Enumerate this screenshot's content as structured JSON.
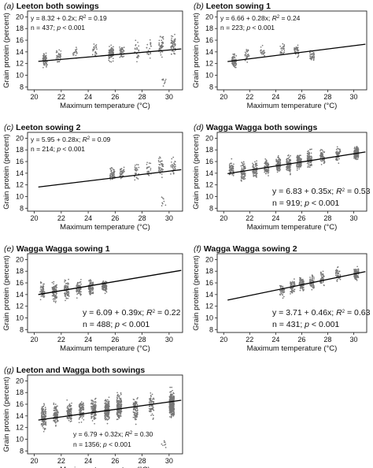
{
  "chart_data": [
    {
      "type": "scatter",
      "panel": "(a)",
      "title": "Leeton both sowings",
      "xlabel": "Maximum temperature (°C)",
      "ylabel": "Grain protein (percent)",
      "xlim": [
        19.5,
        31
      ],
      "ylim": [
        7.5,
        21
      ],
      "xticks": [
        20,
        22,
        24,
        26,
        28,
        30
      ],
      "yticks": [
        8,
        10,
        12,
        14,
        16,
        18,
        20
      ],
      "eq_line": [
        "y = 8.32 + 0.2x; ",
        "R",
        "2",
        " = 0.19"
      ],
      "n_line": [
        "n = 437; ",
        "p",
        " < 0.001"
      ],
      "annotation_position": "top-left",
      "regression": {
        "intercept": 8.32,
        "slope": 0.2,
        "x_range": [
          20.3,
          30.9
        ]
      },
      "points_summary": [
        {
          "x": 20.8,
          "y_min": 10.9,
          "y_max": 14.2,
          "n": 70
        },
        {
          "x": 21.8,
          "y_min": 11.8,
          "y_max": 14.8,
          "n": 30
        },
        {
          "x": 23.0,
          "y_min": 12.5,
          "y_max": 15.3,
          "n": 20
        },
        {
          "x": 24.5,
          "y_min": 12.5,
          "y_max": 16.0,
          "n": 25
        },
        {
          "x": 25.7,
          "y_min": 12.0,
          "y_max": 15.5,
          "n": 95
        },
        {
          "x": 26.5,
          "y_min": 12.5,
          "y_max": 15.5,
          "n": 40
        },
        {
          "x": 27.6,
          "y_min": 12.0,
          "y_max": 16.5,
          "n": 25
        },
        {
          "x": 28.5,
          "y_min": 12.5,
          "y_max": 17.0,
          "n": 22
        },
        {
          "x": 29.4,
          "y_min": 12.5,
          "y_max": 17.5,
          "n": 45
        },
        {
          "x": 29.6,
          "y_min": 7.8,
          "y_max": 10.5,
          "n": 8
        },
        {
          "x": 30.3,
          "y_min": 13.0,
          "y_max": 17.5,
          "n": 57
        }
      ]
    },
    {
      "type": "scatter",
      "panel": "(b)",
      "title": "Leeton sowing 1",
      "xlabel": "Maximum temperature (°C)",
      "ylabel": "Grain protein (percent)",
      "xlim": [
        19.5,
        31
      ],
      "ylim": [
        7.5,
        21
      ],
      "xticks": [
        20,
        22,
        24,
        26,
        28,
        30
      ],
      "yticks": [
        8,
        10,
        12,
        14,
        16,
        18,
        20
      ],
      "eq_line": [
        "y = 6.66 + 0.28x; ",
        "R",
        "2",
        " = 0.24"
      ],
      "n_line": [
        "n = 223; ",
        "p",
        " < 0.001"
      ],
      "annotation_position": "top-left",
      "regression": {
        "intercept": 6.66,
        "slope": 0.28,
        "x_range": [
          20.3,
          30.9
        ]
      },
      "points_summary": [
        {
          "x": 20.8,
          "y_min": 10.9,
          "y_max": 14.0,
          "n": 70
        },
        {
          "x": 21.8,
          "y_min": 11.8,
          "y_max": 14.8,
          "n": 30
        },
        {
          "x": 23.0,
          "y_min": 12.5,
          "y_max": 15.3,
          "n": 20
        },
        {
          "x": 24.5,
          "y_min": 12.8,
          "y_max": 16.0,
          "n": 25
        },
        {
          "x": 25.6,
          "y_min": 12.5,
          "y_max": 15.5,
          "n": 40
        },
        {
          "x": 26.8,
          "y_min": 12.0,
          "y_max": 14.5,
          "n": 38
        }
      ]
    },
    {
      "type": "scatter",
      "panel": "(c)",
      "title": "Leeton sowing 2",
      "xlabel": "Maximum temperature (°C)",
      "ylabel": "Grain protein (percent)",
      "xlim": [
        19.5,
        31
      ],
      "ylim": [
        7.5,
        21
      ],
      "xticks": [
        20,
        22,
        24,
        26,
        28,
        30
      ],
      "yticks": [
        8,
        10,
        12,
        14,
        16,
        18,
        20
      ],
      "eq_line": [
        "y = 5.95 + 0.28x; ",
        "R",
        "2",
        " = 0.09"
      ],
      "n_line": [
        "n = 214; ",
        "p",
        " < 0.001"
      ],
      "annotation_position": "top-left",
      "regression": {
        "intercept": 5.95,
        "slope": 0.28,
        "x_range": [
          20.3,
          30.9
        ]
      },
      "points_summary": [
        {
          "x": 25.8,
          "y_min": 12.0,
          "y_max": 15.5,
          "n": 55
        },
        {
          "x": 26.5,
          "y_min": 12.5,
          "y_max": 15.5,
          "n": 40
        },
        {
          "x": 27.6,
          "y_min": 12.0,
          "y_max": 16.5,
          "n": 25
        },
        {
          "x": 28.5,
          "y_min": 12.5,
          "y_max": 17.0,
          "n": 22
        },
        {
          "x": 29.4,
          "y_min": 12.5,
          "y_max": 17.5,
          "n": 35
        },
        {
          "x": 29.6,
          "y_min": 7.8,
          "y_max": 10.5,
          "n": 8
        },
        {
          "x": 30.3,
          "y_min": 13.0,
          "y_max": 17.0,
          "n": 29
        }
      ]
    },
    {
      "type": "scatter",
      "panel": "(d)",
      "title": "Wagga Wagga both sowings",
      "xlabel": "Maximum temperature (°C)",
      "ylabel": "Grain protein (percent)",
      "xlim": [
        19.5,
        31
      ],
      "ylim": [
        7.5,
        21
      ],
      "xticks": [
        20,
        22,
        24,
        26,
        28,
        30
      ],
      "yticks": [
        8,
        10,
        12,
        14,
        16,
        18,
        20
      ],
      "eq_line": [
        "y = 6.83 + 0.35x; ",
        "R",
        "2",
        " = 0.53"
      ],
      "n_line": [
        "n = 919; ",
        "p",
        " < 0.001"
      ],
      "annotation_position": "bottom-right",
      "regression": {
        "intercept": 6.83,
        "slope": 0.35,
        "x_range": [
          20.3,
          30.9
        ]
      },
      "points_summary": [
        {
          "x": 20.6,
          "y_min": 12.5,
          "y_max": 16.8,
          "n": 60
        },
        {
          "x": 21.5,
          "y_min": 12.0,
          "y_max": 16.5,
          "n": 80
        },
        {
          "x": 22.4,
          "y_min": 12.5,
          "y_max": 17.0,
          "n": 70
        },
        {
          "x": 23.3,
          "y_min": 13.0,
          "y_max": 17.0,
          "n": 80
        },
        {
          "x": 24.2,
          "y_min": 13.5,
          "y_max": 17.5,
          "n": 90
        },
        {
          "x": 25.0,
          "y_min": 13.5,
          "y_max": 17.5,
          "n": 90
        },
        {
          "x": 25.8,
          "y_min": 14.0,
          "y_max": 18.0,
          "n": 110
        },
        {
          "x": 26.6,
          "y_min": 14.5,
          "y_max": 18.5,
          "n": 80
        },
        {
          "x": 27.6,
          "y_min": 15.0,
          "y_max": 18.5,
          "n": 60
        },
        {
          "x": 28.8,
          "y_min": 15.5,
          "y_max": 19.0,
          "n": 50
        },
        {
          "x": 30.2,
          "y_min": 16.0,
          "y_max": 19.0,
          "n": 150
        }
      ]
    },
    {
      "type": "scatter",
      "panel": "(e)",
      "title": "Wagga Wagga sowing 1",
      "xlabel": "Maximum temperature (°C)",
      "ylabel": "Grain protein (percent)",
      "xlim": [
        19.5,
        31
      ],
      "ylim": [
        7.5,
        21
      ],
      "xticks": [
        20,
        22,
        24,
        26,
        28,
        30
      ],
      "yticks": [
        8,
        10,
        12,
        14,
        16,
        18,
        20
      ],
      "eq_line": [
        "y = 6.09 + 0.39x; ",
        "R",
        "2",
        " = 0.22"
      ],
      "n_line": [
        "n = 488; ",
        "p",
        " < 0.001"
      ],
      "annotation_position": "bottom-right",
      "regression": {
        "intercept": 6.09,
        "slope": 0.39,
        "x_range": [
          20.3,
          30.9
        ]
      },
      "points_summary": [
        {
          "x": 20.6,
          "y_min": 12.5,
          "y_max": 16.8,
          "n": 60
        },
        {
          "x": 21.5,
          "y_min": 12.0,
          "y_max": 16.5,
          "n": 80
        },
        {
          "x": 22.4,
          "y_min": 12.5,
          "y_max": 17.0,
          "n": 70
        },
        {
          "x": 23.3,
          "y_min": 13.0,
          "y_max": 17.0,
          "n": 80
        },
        {
          "x": 24.2,
          "y_min": 13.5,
          "y_max": 17.0,
          "n": 90
        },
        {
          "x": 25.2,
          "y_min": 14.0,
          "y_max": 16.8,
          "n": 108
        }
      ]
    },
    {
      "type": "scatter",
      "panel": "(f)",
      "title": "Wagga Wagga sowing 2",
      "xlabel": "Maximum temperature (°C)",
      "ylabel": "Grain protein (percent)",
      "xlim": [
        19.5,
        31
      ],
      "ylim": [
        7.5,
        21
      ],
      "xticks": [
        20,
        22,
        24,
        26,
        28,
        30
      ],
      "yticks": [
        8,
        10,
        12,
        14,
        16,
        18,
        20
      ],
      "eq_line": [
        "y = 3.71 + 0.46x; ",
        "R",
        "2",
        " = 0.63"
      ],
      "n_line": [
        "n = 431; ",
        "p",
        " < 0.001"
      ],
      "annotation_position": "bottom-right",
      "regression": {
        "intercept": 3.71,
        "slope": 0.46,
        "x_range": [
          20.3,
          30.9
        ]
      },
      "points_summary": [
        {
          "x": 24.5,
          "y_min": 13.0,
          "y_max": 16.5,
          "n": 40
        },
        {
          "x": 25.3,
          "y_min": 13.5,
          "y_max": 17.0,
          "n": 60
        },
        {
          "x": 26.0,
          "y_min": 14.0,
          "y_max": 17.5,
          "n": 80
        },
        {
          "x": 26.8,
          "y_min": 14.5,
          "y_max": 18.0,
          "n": 60
        },
        {
          "x": 27.6,
          "y_min": 15.0,
          "y_max": 18.5,
          "n": 40
        },
        {
          "x": 28.8,
          "y_min": 15.5,
          "y_max": 19.0,
          "n": 40
        },
        {
          "x": 30.2,
          "y_min": 16.0,
          "y_max": 19.0,
          "n": 111
        }
      ]
    },
    {
      "type": "scatter",
      "panel": "(g)",
      "title": "Leeton and Wagga both sowings",
      "xlabel": "Maximum temperature (°C)",
      "ylabel": "Grain protein (percent)",
      "xlim": [
        19.5,
        31
      ],
      "ylim": [
        7.5,
        21
      ],
      "xticks": [
        20,
        22,
        24,
        26,
        28,
        30
      ],
      "yticks": [
        8,
        10,
        12,
        14,
        16,
        18,
        20
      ],
      "eq_line": [
        "y = 6.79 + 0.32x; ",
        "R",
        "2",
        " = 0.30"
      ],
      "n_line": [
        "n = 1356; ",
        "p",
        " < 0.001"
      ],
      "annotation_position": "bottom-center",
      "regression": {
        "intercept": 6.79,
        "slope": 0.32,
        "x_range": [
          20.3,
          30.9
        ]
      },
      "points_summary": [
        {
          "x": 20.7,
          "y_min": 10.9,
          "y_max": 16.8,
          "n": 130
        },
        {
          "x": 21.6,
          "y_min": 11.8,
          "y_max": 16.5,
          "n": 110
        },
        {
          "x": 22.6,
          "y_min": 12.5,
          "y_max": 17.0,
          "n": 90
        },
        {
          "x": 23.5,
          "y_min": 12.5,
          "y_max": 17.0,
          "n": 100
        },
        {
          "x": 24.4,
          "y_min": 12.5,
          "y_max": 17.5,
          "n": 115
        },
        {
          "x": 25.4,
          "y_min": 12.5,
          "y_max": 17.5,
          "n": 180
        },
        {
          "x": 26.3,
          "y_min": 12.5,
          "y_max": 18.5,
          "n": 160
        },
        {
          "x": 27.5,
          "y_min": 12.0,
          "y_max": 18.5,
          "n": 85
        },
        {
          "x": 28.7,
          "y_min": 12.5,
          "y_max": 19.0,
          "n": 72
        },
        {
          "x": 29.6,
          "y_min": 7.8,
          "y_max": 10.5,
          "n": 8
        },
        {
          "x": 30.2,
          "y_min": 13.0,
          "y_max": 19.0,
          "n": 306
        }
      ]
    }
  ]
}
